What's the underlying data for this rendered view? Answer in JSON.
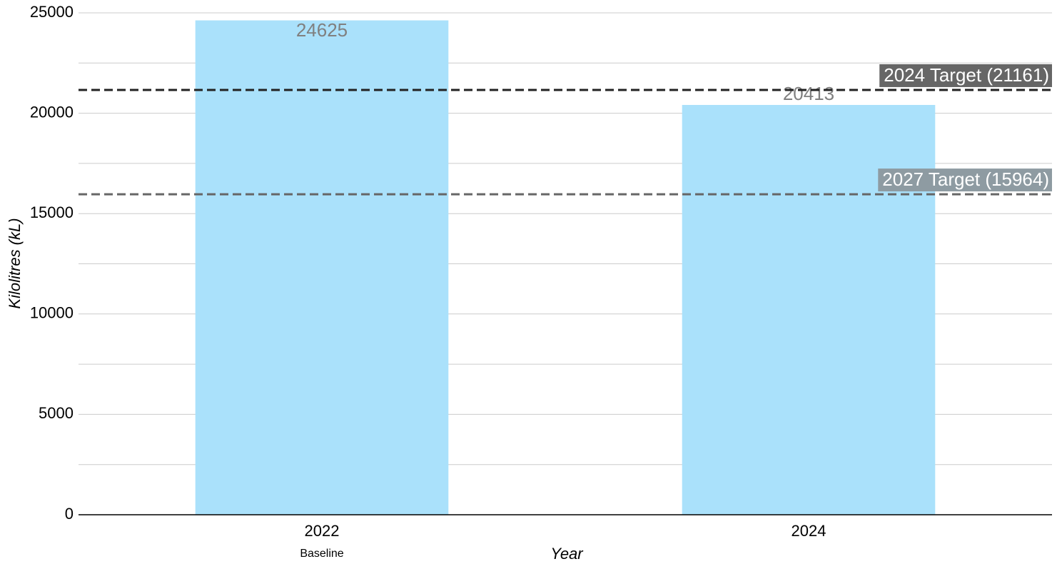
{
  "chart_data": {
    "type": "bar",
    "categories": [
      "2022",
      "2024"
    ],
    "category_sublabels": [
      "Baseline",
      null
    ],
    "values": [
      24625,
      20413
    ],
    "color": "#aae1fb",
    "value_label_color": "#808080",
    "xlabel": "Year",
    "ylabel": "Kilolitres (kL)",
    "ylim": [
      0,
      25000
    ],
    "yticks": [
      0,
      5000,
      10000,
      15000,
      20000,
      25000
    ],
    "minor_yticks": [
      2500,
      7500,
      12500,
      17500,
      22500
    ],
    "grid": true,
    "reference_lines": [
      {
        "value": 21161,
        "label": "2024 Target (21161)",
        "color": "#222222",
        "label_background": "#666666"
      },
      {
        "value": 15964,
        "label": "2027 Target (15964)",
        "color": "#666666",
        "label_background": "#8e9ba2"
      }
    ]
  }
}
